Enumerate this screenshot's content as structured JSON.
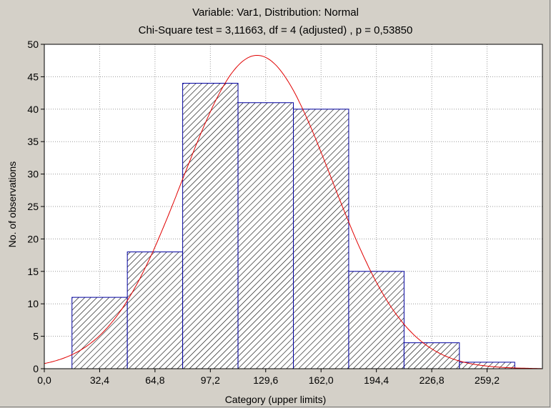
{
  "chart_data": {
    "type": "bar",
    "title": "Variable: Var1, Distribution: Normal",
    "subtitle": "Chi-Square test = 3,11663, df = 4 (adjusted) , p = 0,53850",
    "xlabel": "Category (upper limits)",
    "ylabel": "No. of observations",
    "ylim": [
      0,
      50
    ],
    "xlim": [
      0,
      291.6
    ],
    "y_ticks": [
      0,
      5,
      10,
      15,
      20,
      25,
      30,
      35,
      40,
      45,
      50
    ],
    "y_tick_labels": [
      "0",
      "5",
      "10",
      "15",
      "20",
      "25",
      "30",
      "35",
      "40",
      "45",
      "50"
    ],
    "x_ticks": [
      0,
      32.4,
      64.8,
      97.2,
      129.6,
      162.0,
      194.4,
      226.8,
      259.2
    ],
    "x_tick_labels": [
      "0,0",
      "32,4",
      "64,8",
      "97,2",
      "129,6",
      "162,0",
      "194,4",
      "226,8",
      "259,2"
    ],
    "grid": true,
    "bins": [
      {
        "from": 16.2,
        "to": 48.6,
        "count": 11
      },
      {
        "from": 48.6,
        "to": 81.0,
        "count": 18
      },
      {
        "from": 81.0,
        "to": 113.4,
        "count": 44
      },
      {
        "from": 113.4,
        "to": 145.8,
        "count": 41
      },
      {
        "from": 145.8,
        "to": 178.2,
        "count": 40
      },
      {
        "from": 178.2,
        "to": 210.6,
        "count": 15
      },
      {
        "from": 210.6,
        "to": 243.0,
        "count": 4
      },
      {
        "from": 243.0,
        "to": 275.4,
        "count": 1
      }
    ],
    "fit_curve": {
      "distribution": "Normal",
      "peak_x": 124.6,
      "peak_y": 48.3,
      "sigma": 43.5,
      "color": "#e00000"
    },
    "bar_color": "#0000a0",
    "background": "#ffffff"
  }
}
